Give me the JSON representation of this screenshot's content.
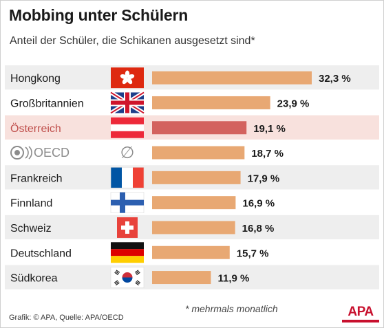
{
  "header": {
    "title": "Mobbing unter Schülern",
    "subtitle": "Anteil der Schüler, die Schikanen ausgesetzt sind*"
  },
  "footer": {
    "footnote": "* mehrmals monatlich",
    "source": "Grafik: © APA, Quelle: APA/OECD",
    "logo_text": "APA"
  },
  "colors": {
    "bar": "#e8a873",
    "highlight_bar": "#d3625e",
    "highlight_row": "#f8e1dd",
    "highlight_text": "#c0504d",
    "stripe": "#eeeeee",
    "text": "#1a1a1a",
    "oecd_gray": "#8c8c8c"
  },
  "chart_data": {
    "type": "bar",
    "orientation": "horizontal",
    "categories": [
      "Hongkong",
      "Großbritannien",
      "Österreich",
      "OECD",
      "Frankreich",
      "Finnland",
      "Schweiz",
      "Deutschland",
      "Südkorea"
    ],
    "values": [
      32.3,
      23.9,
      19.1,
      18.7,
      17.9,
      16.9,
      16.8,
      15.7,
      11.9
    ],
    "value_labels": [
      "32,3 %",
      "23,9 %",
      "19,1 %",
      "18,7 %",
      "17,9 %",
      "16,9 %",
      "16,8 %",
      "15,7 %",
      "11,9 %"
    ],
    "flags": [
      "hongkong-flag-icon",
      "uk-flag-icon",
      "austria-flag-icon",
      "average-symbol-icon",
      "france-flag-icon",
      "finland-flag-icon",
      "switzerland-flag-icon",
      "germany-flag-icon",
      "south-korea-flag-icon"
    ],
    "oecd_symbol": "∅",
    "highlight": "Österreich",
    "unit": "%",
    "xlim": [
      0,
      32.3
    ],
    "grid": false,
    "legend": "none"
  }
}
